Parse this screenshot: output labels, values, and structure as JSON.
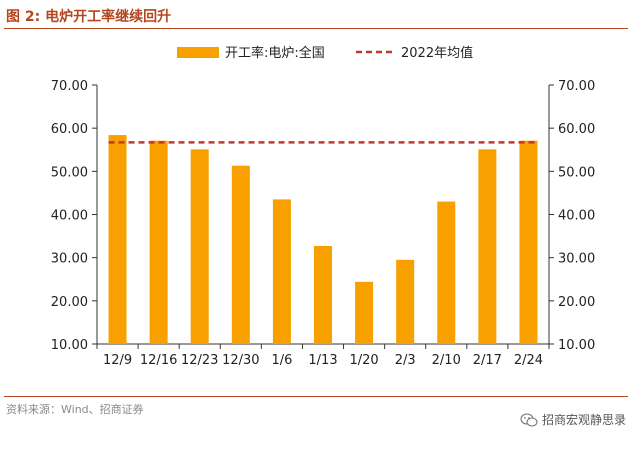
{
  "header": {
    "title": "图 2:  电炉开工率继续回升"
  },
  "footer": {
    "source": "资料来源：Wind、招商证券",
    "brand": "招商宏观静思录",
    "brand_icon": "wechat-icon"
  },
  "colors": {
    "bar": "#f7a000",
    "avg_line": "#c0392b",
    "accent": "#b5461f"
  },
  "chart_data": {
    "type": "bar",
    "categories": [
      "12/9",
      "12/16",
      "12/23",
      "12/30",
      "1/6",
      "1/13",
      "1/20",
      "2/3",
      "2/10",
      "2/17",
      "2/24"
    ],
    "series": [
      {
        "name": "开工率:电炉:全国",
        "type": "bar",
        "values": [
          58.4,
          57.1,
          55.1,
          51.3,
          43.5,
          32.7,
          24.4,
          29.5,
          43.0,
          55.1,
          57.1
        ]
      },
      {
        "name": "2022年均值",
        "type": "line-dashed",
        "values": [
          56.7,
          56.7,
          56.7,
          56.7,
          56.7,
          56.7,
          56.7,
          56.7,
          56.7,
          56.7,
          56.7
        ]
      }
    ],
    "ylim": [
      10,
      70
    ],
    "yticks": [
      "10.00",
      "20.00",
      "30.00",
      "40.00",
      "50.00",
      "60.00",
      "70.00"
    ],
    "y2ticks": [
      "10.00",
      "20.00",
      "30.00",
      "40.00",
      "50.00",
      "60.00",
      "70.00"
    ],
    "legend_position": "top",
    "grid": false
  }
}
